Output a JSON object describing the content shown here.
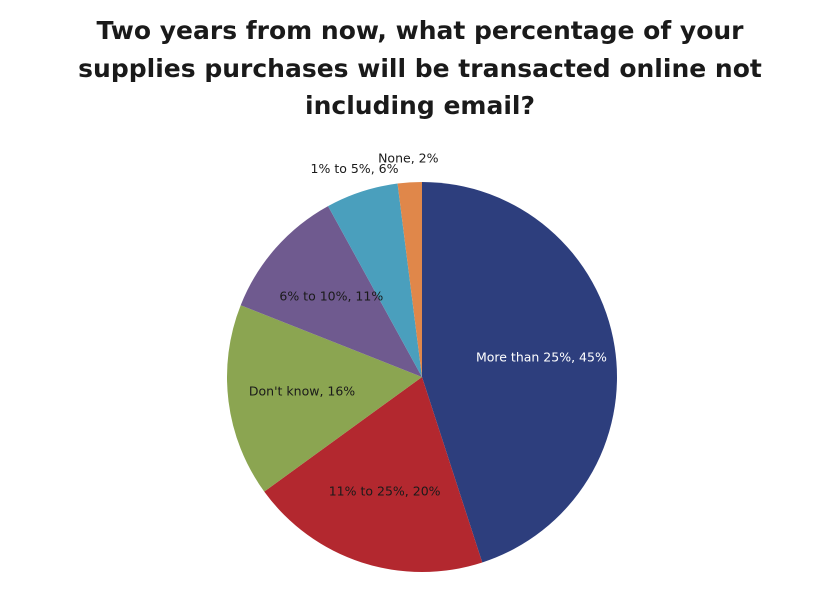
{
  "chart_data": {
    "type": "pie",
    "title": [
      "Two years from now, what percentage of your",
      "supplies purchases will be transacted online not",
      "including email?"
    ],
    "values": [
      45,
      20,
      16,
      11,
      6,
      2
    ],
    "value_labels": [
      "More than 25%, 45%",
      "11% to 25%, 20%",
      "Don't know, 16%",
      "6% to 10%, 11%",
      "1% to 5%, 6%",
      "None, 2%"
    ],
    "colors": [
      "#2d3e7d",
      "#b3282f",
      "#8ba551",
      "#6f5a8f",
      "#4a9fbd",
      "#e0874a"
    ]
  }
}
